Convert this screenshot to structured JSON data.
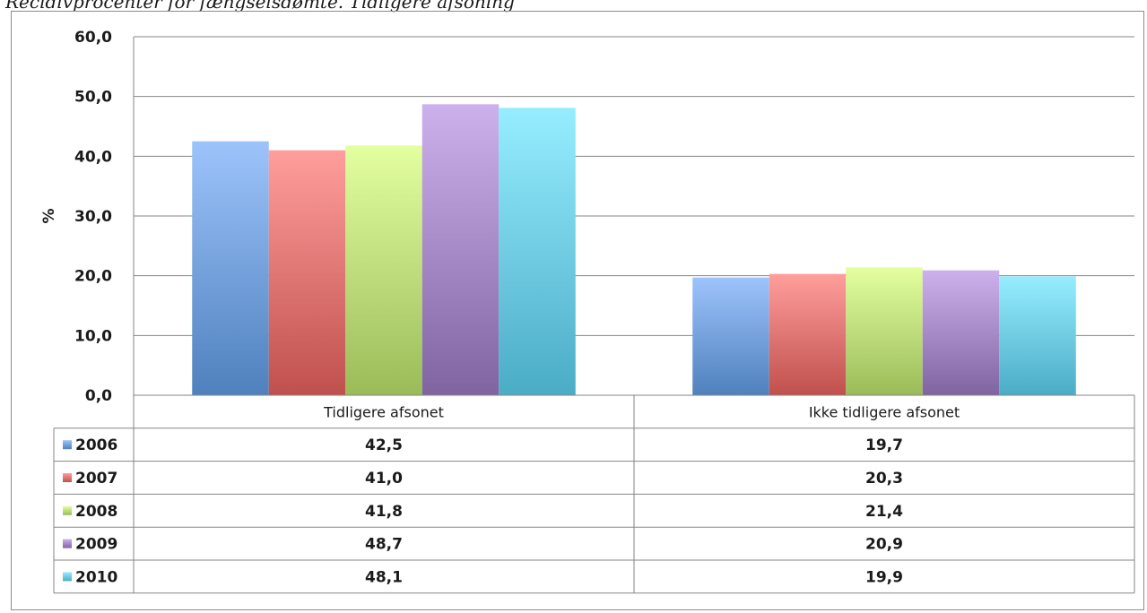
{
  "page_title": "Recidivprocenter for fængselsdømte. Tidligere afsoning",
  "chart_data": {
    "type": "bar",
    "categories": [
      "Tidligere afsonet",
      "Ikke tidligere afsonet"
    ],
    "ylabel": "%",
    "ylim": [
      0,
      60
    ],
    "yticks": [
      "0,0",
      "10,0",
      "20,0",
      "30,0",
      "40,0",
      "50,0",
      "60,0"
    ],
    "grid": true,
    "legend": "data-table",
    "series": [
      {
        "name": "2006",
        "values": [
          42.5,
          19.7
        ],
        "labels": [
          "42,5",
          "19,7"
        ],
        "color": "#4f81bd",
        "top": "#9dc3fb"
      },
      {
        "name": "2007",
        "values": [
          41.0,
          20.3
        ],
        "labels": [
          "41,0",
          "20,3"
        ],
        "color": "#c0504d",
        "top": "#ff9e9c"
      },
      {
        "name": "2008",
        "values": [
          41.8,
          21.4
        ],
        "labels": [
          "41,8",
          "21,4"
        ],
        "color": "#9bbb59",
        "top": "#e3ffa0"
      },
      {
        "name": "2009",
        "values": [
          48.7,
          20.9
        ],
        "labels": [
          "48,7",
          "20,9"
        ],
        "color": "#8064a2",
        "top": "#ccb1ec"
      },
      {
        "name": "2010",
        "values": [
          48.1,
          19.9
        ],
        "labels": [
          "48,1",
          "19,9"
        ],
        "color": "#4bacc6",
        "top": "#96edff"
      }
    ]
  }
}
